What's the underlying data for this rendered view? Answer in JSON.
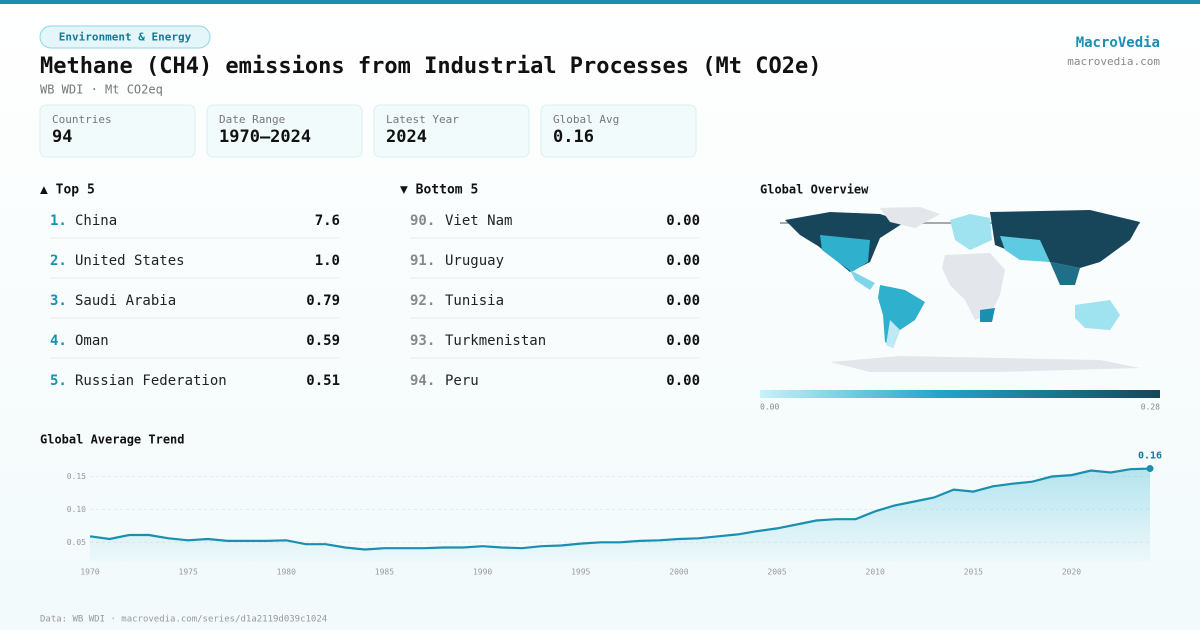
{
  "header": {
    "tag": "Environment & Energy",
    "title": "Methane (CH4) emissions from Industrial Processes (Mt CO2e)",
    "subtitle": "WB WDI · Mt CO2eq",
    "brand": "MacroVedia",
    "site": "macrovedia.com"
  },
  "stats": [
    {
      "label": "Countries",
      "value": 94
    },
    {
      "label": "Date Range",
      "value": "1970–2024"
    },
    {
      "label": "Latest Year",
      "value": 2024
    },
    {
      "label": "Global Avg",
      "value": 0.16
    }
  ],
  "top": {
    "title": "▲ Top 5",
    "rows": [
      [
        "1.",
        "China",
        "7.6"
      ],
      [
        "2.",
        "United States",
        "1.0"
      ],
      [
        "3.",
        "Saudi Arabia",
        "0.79"
      ],
      [
        "4.",
        "Oman",
        "0.59"
      ],
      [
        "5.",
        "Russian Federation",
        "0.51"
      ]
    ]
  },
  "bottom": {
    "title": "▼ Bottom 5",
    "rows": [
      [
        "90.",
        "Viet Nam",
        "0.00"
      ],
      [
        "91.",
        "Uruguay",
        "0.00"
      ],
      [
        "92.",
        "Tunisia",
        "0.00"
      ],
      [
        "93.",
        "Turkmenistan",
        "0.00"
      ],
      [
        "94.",
        "Peru",
        "0.00"
      ]
    ]
  },
  "map": {
    "title": "Global Overview",
    "legend_min": "0.00",
    "legend_max": "0.28"
  },
  "chart_data": {
    "type": "line",
    "title": "Global Average Trend",
    "color": "#1a8fb0",
    "x": [
      1970,
      1971,
      1972,
      1973,
      1974,
      1975,
      1976,
      1977,
      1978,
      1979,
      1980,
      1981,
      1982,
      1983,
      1984,
      1985,
      1986,
      1987,
      1988,
      1989,
      1990,
      1991,
      1992,
      1993,
      1994,
      1995,
      1996,
      1997,
      1998,
      1999,
      2000,
      2001,
      2002,
      2003,
      2004,
      2005,
      2006,
      2007,
      2008,
      2009,
      2010,
      2011,
      2012,
      2013,
      2014,
      2015,
      2016,
      2017,
      2018,
      2019,
      2020,
      2021,
      2022,
      2023,
      2024
    ],
    "values": [
      0.059,
      0.055,
      0.061,
      0.061,
      0.056,
      0.053,
      0.055,
      0.052,
      0.052,
      0.052,
      0.053,
      0.047,
      0.047,
      0.042,
      0.039,
      0.041,
      0.041,
      0.041,
      0.042,
      0.042,
      0.044,
      0.042,
      0.041,
      0.044,
      0.045,
      0.048,
      0.05,
      0.05,
      0.052,
      0.053,
      0.055,
      0.056,
      0.059,
      0.062,
      0.067,
      0.071,
      0.077,
      0.083,
      0.085,
      0.085,
      0.097,
      0.106,
      0.112,
      0.118,
      0.13,
      0.127,
      0.135,
      0.139,
      0.142,
      0.15,
      0.152,
      0.159,
      0.156,
      0.161,
      0.162
    ],
    "annotation": "0.16",
    "xlim": [
      1970,
      2024
    ],
    "xticks": [
      1970,
      1975,
      1980,
      1985,
      1990,
      1995,
      2000,
      2005,
      2010,
      2015,
      2020
    ],
    "ylim": [
      0.02,
      0.175
    ],
    "yticks": [
      0.05,
      {
        "value": 0.1,
        "label": "0.10"
      },
      0.15
    ],
    "grid": true
  },
  "footer": "Data: WB WDI · macrovedia.com/series/d1a2119d039c1024"
}
